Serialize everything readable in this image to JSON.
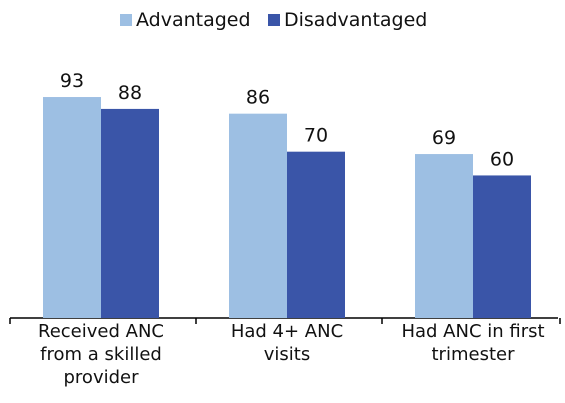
{
  "chart_data": {
    "type": "bar",
    "categories": [
      "Received ANC from a skilled provider",
      "Had 4+ ANC visits",
      "Had ANC in first trimester"
    ],
    "series": [
      {
        "name": "Advantaged",
        "color": "#9dbfe3",
        "values": [
          93,
          86,
          69
        ]
      },
      {
        "name": "Disadvantaged",
        "color": "#3a55a8",
        "values": [
          88,
          70,
          60
        ]
      }
    ],
    "ylim": [
      0,
      100
    ]
  }
}
